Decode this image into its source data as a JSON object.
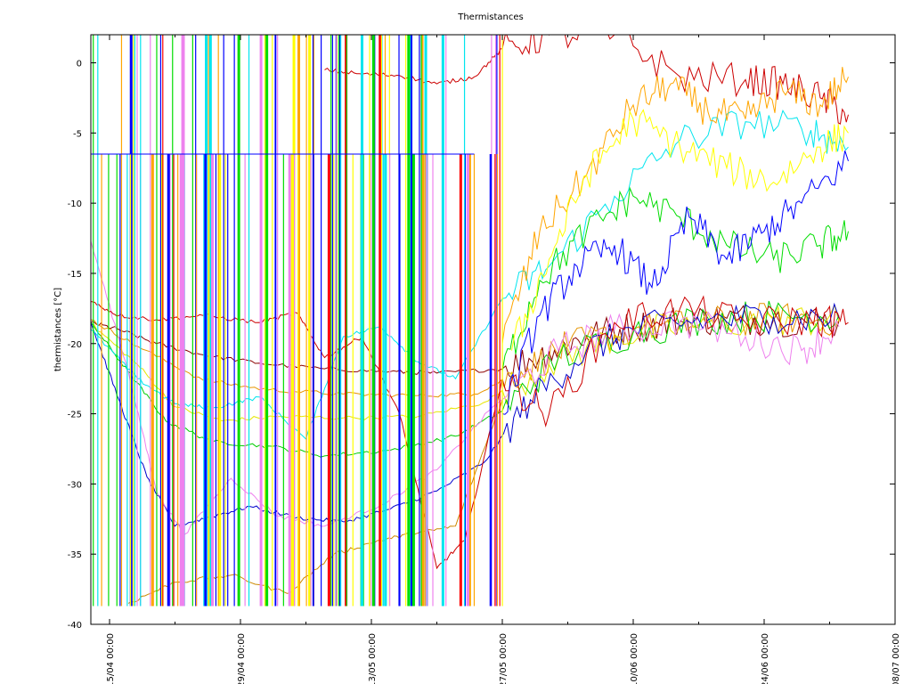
{
  "chart_data": {
    "type": "line",
    "title": "Thermistances",
    "xlabel": "",
    "ylabel": "thermistances [°C]",
    "ylim": [
      -40,
      2
    ],
    "xlim": [
      "2012-04-13 00:00",
      "2012-07-08 00:00"
    ],
    "yticks": [
      0,
      -5,
      -10,
      -15,
      -20,
      -25,
      -30,
      -35,
      -40
    ],
    "xticks": [
      {
        "value": "2012-04-15 00:00",
        "label": "15/04 00:00"
      },
      {
        "value": "2012-04-29 00:00",
        "label": "29/04 00:00"
      },
      {
        "value": "2012-05-13 00:00",
        "label": "13/05 00:00"
      },
      {
        "value": "2012-05-27 00:00",
        "label": "27/05 00:00"
      },
      {
        "value": "2012-06-10 00:00",
        "label": "10/06 00:00"
      },
      {
        "value": "2012-06-24 00:00",
        "label": "24/06 00:00"
      },
      {
        "value": "2012-07-08 00:00",
        "label": "08/07 00:00"
      }
    ],
    "minor_xticks": [
      "2012-04-22 00:00",
      "2012-05-06 00:00",
      "2012-05-20 00:00",
      "2012-06-03 00:00",
      "2012-06-17 00:00",
      "2012-07-01 00:00"
    ],
    "grid": false,
    "legend": "none",
    "series": [
      {
        "color": "#8b0000",
        "x": [
          "2012-04-13 00:00",
          "2012-04-16 00:00",
          "2012-04-20 00:00",
          "2012-04-25 00:00",
          "2012-05-01 00:00",
          "2012-05-08 00:00",
          "2012-05-15 00:00",
          "2012-05-20 00:00",
          "2012-05-27 00:00",
          "2012-06-01 00:00",
          "2012-06-05 00:00",
          "2012-06-10 00:00",
          "2012-06-15 00:00",
          "2012-06-20 00:00",
          "2012-06-25 00:00",
          "2012-07-02 00:00"
        ],
        "values": [
          -18.5,
          -19.0,
          -20.0,
          -20.8,
          -21.4,
          -21.8,
          -22.0,
          -22.1,
          -21.8,
          -20.6,
          -19.5,
          -18.8,
          -18.4,
          -18.2,
          -18.3,
          -18.4
        ]
      },
      {
        "color": "#e69500",
        "x": [
          "2012-04-13 00:00",
          "2012-04-18 00:00",
          "2012-04-25 00:00",
          "2012-05-02 00:00",
          "2012-05-10 00:00",
          "2012-05-18 00:00",
          "2012-05-24 00:00",
          "2012-05-29 00:00",
          "2012-06-03 00:00",
          "2012-06-10 00:00",
          "2012-06-18 00:00",
          "2012-06-25 00:00",
          "2012-07-02 00:00"
        ],
        "values": [
          -18.3,
          -20.2,
          -22.6,
          -23.3,
          -23.6,
          -23.7,
          -23.6,
          -22.0,
          -20.2,
          -19.0,
          -18.5,
          -18.2,
          -18.3
        ]
      },
      {
        "color": "#e6e600",
        "x": [
          "2012-04-13 00:00",
          "2012-04-18 00:00",
          "2012-04-22 00:00",
          "2012-04-27 00:00",
          "2012-05-03 00:00",
          "2012-05-10 00:00",
          "2012-05-18 00:00",
          "2012-05-25 00:00",
          "2012-06-01 00:00",
          "2012-06-08 00:00",
          "2012-06-15 00:00",
          "2012-06-25 00:00",
          "2012-07-02 00:00"
        ],
        "values": [
          -18.6,
          -21.5,
          -24.5,
          -25.5,
          -25.2,
          -25.3,
          -25.2,
          -24.2,
          -21.5,
          -19.5,
          -18.8,
          -18.3,
          -18.4
        ]
      },
      {
        "color": "#00cc00",
        "x": [
          "2012-04-13 00:00",
          "2012-04-17 00:00",
          "2012-04-21 00:00",
          "2012-04-26 00:00",
          "2012-05-02 00:00",
          "2012-05-08 00:00",
          "2012-05-15 00:00",
          "2012-05-22 00:00",
          "2012-05-27 00:00",
          "2012-06-02 00:00",
          "2012-06-10 00:00",
          "2012-06-18 00:00",
          "2012-06-25 00:00",
          "2012-07-02 00:00"
        ],
        "values": [
          -18.5,
          -22.0,
          -25.5,
          -27.0,
          -27.3,
          -28.0,
          -27.6,
          -26.6,
          -24.8,
          -21.0,
          -19.2,
          -18.2,
          -18.0,
          -18.0
        ]
      },
      {
        "color": "#0000cc",
        "x": [
          "2012-04-13 00:00",
          "2012-04-16 00:00",
          "2012-04-19 00:00",
          "2012-04-22 00:00",
          "2012-04-26 00:00",
          "2012-04-30 00:00",
          "2012-05-05 00:00",
          "2012-05-10 00:00",
          "2012-05-15 00:00",
          "2012-05-20 00:00",
          "2012-05-25 00:00",
          "2012-05-30 00:00",
          "2012-06-05 00:00",
          "2012-06-10 00:00",
          "2012-06-18 00:00",
          "2012-06-25 00:00",
          "2012-07-02 00:00"
        ],
        "values": [
          -18.5,
          -24.0,
          -29.5,
          -33.0,
          -32.3,
          -31.6,
          -32.4,
          -32.7,
          -31.8,
          -30.5,
          -28.5,
          -24.0,
          -20.5,
          -19.0,
          -18.3,
          -18.1,
          -18.2
        ]
      },
      {
        "color": "#ee82ee",
        "x": [
          "2012-04-13 00:00",
          "2012-04-17 00:00",
          "2012-04-20 00:00",
          "2012-04-23 00:00",
          "2012-04-28 00:00",
          "2012-05-03 00:00",
          "2012-05-08 00:00",
          "2012-05-14 00:00",
          "2012-05-20 00:00",
          "2012-05-26 00:00",
          "2012-06-02 00:00",
          "2012-06-08 00:00",
          "2012-06-15 00:00",
          "2012-06-22 00:00",
          "2012-06-28 00:00",
          "2012-07-02 00:00"
        ],
        "values": [
          -12.7,
          -22.0,
          -30.5,
          -33.6,
          -29.6,
          -32.3,
          -33.0,
          -31.5,
          -29.0,
          -24.5,
          -20.5,
          -19.0,
          -18.4,
          -19.5,
          -20.5,
          -18.8
        ]
      },
      {
        "color": "#00e5ee",
        "x": [
          "2012-04-13 00:00",
          "2012-04-18 00:00",
          "2012-04-22 00:00",
          "2012-04-26 00:00",
          "2012-05-01 00:00",
          "2012-05-06 00:00",
          "2012-05-10 00:00",
          "2012-05-14 00:00",
          "2012-05-18 00:00",
          "2012-05-22 00:00",
          "2012-05-27 00:00",
          "2012-06-01 00:00",
          "2012-06-08 00:00",
          "2012-06-15 00:00",
          "2012-06-22 00:00",
          "2012-06-29 00:00",
          "2012-07-03 00:00"
        ],
        "values": [
          -19.0,
          -22.5,
          -24.3,
          -24.6,
          -23.8,
          -26.8,
          -19.5,
          -18.8,
          -21.3,
          -22.5,
          -16.8,
          -14.5,
          -9.5,
          -5.5,
          -4.2,
          -4.8,
          -6.0
        ]
      },
      {
        "color": "#cc8800",
        "x": [
          "2012-04-17 00:00",
          "2012-04-22 00:00",
          "2012-04-28 00:00",
          "2012-05-04 00:00",
          "2012-05-09 00:00",
          "2012-05-14 00:00",
          "2012-05-18 00:00",
          "2012-05-22 00:00",
          "2012-05-27 00:00"
        ],
        "values": [
          -38.5,
          -37.0,
          -36.5,
          -37.8,
          -35.0,
          -34.0,
          -33.5,
          -33.0,
          -24.0
        ]
      },
      {
        "color": "#cc0000",
        "x": [
          "2012-04-13 00:00",
          "2012-04-16 00:00",
          "2012-04-20 00:00",
          "2012-04-25 00:00",
          "2012-05-01 00:00",
          "2012-05-05 00:00",
          "2012-05-08 00:00",
          "2012-05-12 00:00",
          "2012-05-16 00:00",
          "2012-05-20 00:00",
          "2012-05-23 00:00",
          "2012-05-27 00:00",
          "2012-06-01 00:00",
          "2012-06-08 00:00",
          "2012-06-15 00:00",
          "2012-06-22 00:00",
          "2012-06-29 00:00",
          "2012-07-03 00:00"
        ],
        "values": [
          -17.0,
          -18.0,
          -18.3,
          -18.0,
          -18.5,
          -17.8,
          -21.0,
          -19.5,
          -25.0,
          -36.0,
          -34.0,
          -22.5,
          -25.0,
          -18.5,
          -17.5,
          -18.5,
          -18.3,
          -18.5
        ]
      },
      {
        "color": "#cc0000",
        "x": [
          "2012-05-08 00:00",
          "2012-05-12 00:00",
          "2012-05-16 00:00",
          "2012-05-20 00:00",
          "2012-05-24 00:00",
          "2012-05-27 00:00",
          "2012-06-01 00:00",
          "2012-06-08 00:00",
          "2012-06-15 00:00",
          "2012-06-22 00:00",
          "2012-06-26 00:00",
          "2012-06-30 00:00",
          "2012-07-03 00:00"
        ],
        "values": [
          -0.5,
          -0.8,
          -0.9,
          -1.5,
          -1.0,
          1.0,
          2.0,
          2.0,
          -1.0,
          -1.2,
          -1.5,
          -2.5,
          -3.7
        ]
      },
      {
        "color": "#ffa500",
        "x": [
          "2012-05-27 00:00",
          "2012-05-31 00:00",
          "2012-06-05 00:00",
          "2012-06-10 00:00",
          "2012-06-14 00:00",
          "2012-06-18 00:00",
          "2012-06-22 00:00",
          "2012-06-26 00:00",
          "2012-06-30 00:00",
          "2012-07-03 00:00"
        ],
        "values": [
          -20.0,
          -12.0,
          -8.0,
          -3.0,
          -1.5,
          -3.5,
          -4.0,
          -2.0,
          -3.0,
          -1.0
        ]
      },
      {
        "color": "#00dd00",
        "x": [
          "2012-05-27 00:00",
          "2012-05-31 00:00",
          "2012-06-05 00:00",
          "2012-06-10 00:00",
          "2012-06-15 00:00",
          "2012-06-20 00:00",
          "2012-06-25 00:00",
          "2012-06-30 00:00",
          "2012-07-03 00:00"
        ],
        "values": [
          -22.0,
          -15.5,
          -12.0,
          -9.5,
          -11.0,
          -13.0,
          -14.0,
          -13.0,
          -12.0
        ]
      },
      {
        "color": "#ffff00",
        "x": [
          "2012-05-28 00:00",
          "2012-06-01 00:00",
          "2012-06-05 00:00",
          "2012-06-10 00:00",
          "2012-06-15 00:00",
          "2012-06-20 00:00",
          "2012-06-25 00:00",
          "2012-06-30 00:00",
          "2012-07-03 00:00"
        ],
        "values": [
          -20.5,
          -14.0,
          -8.0,
          -4.0,
          -6.0,
          -7.5,
          -8.5,
          -6.0,
          -5.0
        ]
      },
      {
        "color": "#0000ff",
        "x": [
          "2012-05-27 00:00",
          "2012-05-31 00:00",
          "2012-06-04 00:00",
          "2012-06-08 00:00",
          "2012-06-12 00:00",
          "2012-06-16 00:00",
          "2012-06-20 00:00",
          "2012-06-24 00:00",
          "2012-06-28 00:00",
          "2012-07-03 00:00"
        ],
        "values": [
          -25.0,
          -18.0,
          -14.5,
          -13.0,
          -16.0,
          -11.0,
          -14.0,
          -12.0,
          -10.0,
          -7.0
        ]
      }
    ]
  }
}
